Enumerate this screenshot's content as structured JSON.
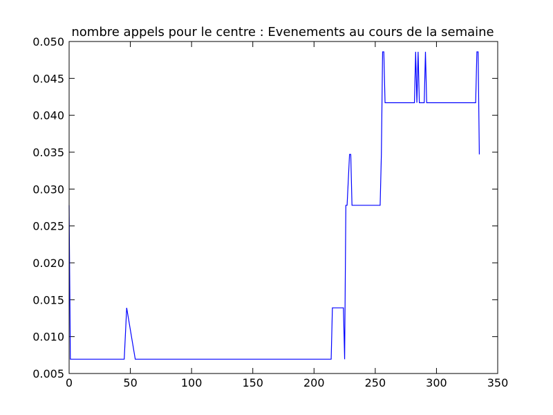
{
  "chart_data": {
    "type": "line",
    "title": "nombre appels pour le centre : Evenements au cours de la semaine",
    "xlabel": "",
    "ylabel": "",
    "xlim": [
      0,
      350
    ],
    "ylim": [
      0.005,
      0.05
    ],
    "xticks": [
      0,
      50,
      100,
      150,
      200,
      250,
      300,
      350
    ],
    "yticks": [
      0.005,
      0.01,
      0.015,
      0.02,
      0.025,
      0.03,
      0.035,
      0.04,
      0.045,
      0.05
    ],
    "xtick_labels": [
      "0",
      "50",
      "100",
      "150",
      "200",
      "250",
      "300",
      "350"
    ],
    "ytick_labels": [
      "0.005",
      "0.010",
      "0.015",
      "0.020",
      "0.025",
      "0.030",
      "0.035",
      "0.040",
      "0.045",
      "0.050"
    ],
    "grid": false,
    "line_color": "#0000ff",
    "series": [
      {
        "x": [
          0,
          1,
          45,
          47,
          54,
          214,
          215,
          224,
          225,
          226,
          227,
          229,
          230,
          231,
          254,
          255,
          256,
          257,
          258,
          282,
          283,
          284,
          285,
          286,
          287,
          290,
          291,
          292,
          332,
          333,
          334,
          335
        ],
        "values": [
          0.0278,
          0.00694,
          0.00694,
          0.0139,
          0.00694,
          0.00694,
          0.0139,
          0.0139,
          0.00694,
          0.0278,
          0.0278,
          0.0347,
          0.0347,
          0.0278,
          0.0278,
          0.0347,
          0.0486,
          0.0486,
          0.0417,
          0.0417,
          0.0486,
          0.0417,
          0.0486,
          0.0417,
          0.0417,
          0.0417,
          0.0486,
          0.0417,
          0.0417,
          0.0486,
          0.0486,
          0.0347
        ]
      }
    ]
  }
}
